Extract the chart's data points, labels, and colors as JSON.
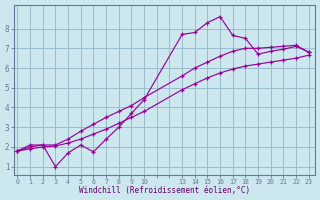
{
  "background_color": "#cce8ee",
  "grid_color": "#99bbcc",
  "line_color": "#990099",
  "xlabel": "Windchill (Refroidissement éolien,°C)",
  "figsize": [
    3.2,
    2.0
  ],
  "dpi": 100,
  "yticks": [
    1,
    2,
    3,
    4,
    5,
    6,
    7,
    8
  ],
  "xtick_labels": [
    "0",
    "1",
    "2",
    "3",
    "4",
    "5",
    "6",
    "7",
    "8",
    "9",
    "10",
    "",
    "",
    "13",
    "14",
    "15",
    "16",
    "17",
    "18",
    "19",
    "20",
    "21",
    "22",
    "23"
  ],
  "xtick_positions": [
    0,
    1,
    2,
    3,
    4,
    5,
    6,
    7,
    8,
    9,
    10,
    11,
    12,
    13,
    14,
    15,
    16,
    17,
    18,
    19,
    20,
    21,
    22,
    23
  ],
  "xlim": [
    -0.3,
    23.5
  ],
  "ylim": [
    0.6,
    9.2
  ],
  "series1_x": [
    0,
    1,
    2,
    3,
    4,
    5,
    6,
    7,
    8,
    9,
    10,
    13,
    14,
    15,
    16,
    17,
    18,
    19,
    20,
    21,
    22,
    23
  ],
  "series1_y": [
    1.8,
    2.1,
    2.1,
    1.0,
    1.7,
    2.1,
    1.75,
    2.4,
    3.0,
    3.7,
    4.4,
    7.7,
    7.8,
    8.3,
    8.6,
    7.65,
    7.5,
    6.7,
    6.85,
    6.95,
    7.1,
    6.8
  ],
  "series2_x": [
    0,
    1,
    2,
    3,
    4,
    5,
    6,
    7,
    8,
    9,
    10,
    13,
    14,
    15,
    16,
    17,
    18,
    19,
    20,
    21,
    22,
    23
  ],
  "series2_y": [
    1.8,
    2.0,
    2.1,
    2.1,
    2.4,
    2.8,
    3.15,
    3.5,
    3.8,
    4.1,
    4.5,
    5.6,
    6.0,
    6.3,
    6.6,
    6.85,
    7.0,
    7.0,
    7.05,
    7.1,
    7.15,
    6.8
  ],
  "series3_x": [
    0,
    1,
    2,
    3,
    4,
    5,
    6,
    7,
    8,
    9,
    10,
    13,
    14,
    15,
    16,
    17,
    18,
    19,
    20,
    21,
    22,
    23
  ],
  "series3_y": [
    1.8,
    1.9,
    2.0,
    2.05,
    2.2,
    2.4,
    2.65,
    2.9,
    3.2,
    3.5,
    3.8,
    4.9,
    5.2,
    5.5,
    5.75,
    5.95,
    6.1,
    6.2,
    6.3,
    6.4,
    6.5,
    6.65
  ]
}
